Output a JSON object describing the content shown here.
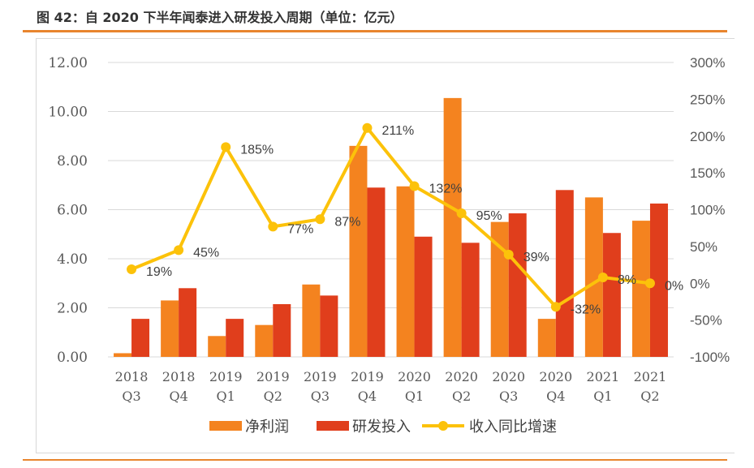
{
  "title": "图 42：自 2020 下半年闻泰进入研发投入周期（单位：亿元）",
  "chart_data": {
    "type": "bar+line",
    "categories": [
      [
        "2018",
        "Q3"
      ],
      [
        "2018",
        "Q4"
      ],
      [
        "2019",
        "Q1"
      ],
      [
        "2019",
        "Q2"
      ],
      [
        "2019",
        "Q3"
      ],
      [
        "2019",
        "Q4"
      ],
      [
        "2020",
        "Q1"
      ],
      [
        "2020",
        "Q2"
      ],
      [
        "2020",
        "Q3"
      ],
      [
        "2020",
        "Q4"
      ],
      [
        "2021",
        "Q1"
      ],
      [
        "2021",
        "Q2"
      ]
    ],
    "series": [
      {
        "name": "净利润",
        "type": "bar",
        "axis": "left",
        "color": "#f4831f",
        "values": [
          0.15,
          2.3,
          0.85,
          1.3,
          2.95,
          8.6,
          6.95,
          10.55,
          5.5,
          1.55,
          6.5,
          5.55
        ]
      },
      {
        "name": "研发投入",
        "type": "bar",
        "axis": "left",
        "color": "#e03e1c",
        "values": [
          1.55,
          2.8,
          1.55,
          2.15,
          2.5,
          6.9,
          4.9,
          4.65,
          5.85,
          6.8,
          5.05,
          6.25
        ]
      },
      {
        "name": "收入同比增速",
        "type": "line",
        "axis": "right",
        "color": "#fcc20a",
        "values": [
          19,
          45,
          185,
          77,
          87,
          211,
          132,
          95,
          39,
          -32,
          8,
          0
        ],
        "labels": [
          "19%",
          "45%",
          "185%",
          "77%",
          "87%",
          "211%",
          "132%",
          "95%",
          "39%",
          "-32%",
          "8%",
          "0%"
        ]
      }
    ],
    "left_axis": {
      "ylim": [
        0,
        12
      ],
      "ticks": [
        "0.00",
        "2.00",
        "4.00",
        "6.00",
        "8.00",
        "10.00",
        "12.00"
      ]
    },
    "right_axis": {
      "ylim": [
        -100,
        300
      ],
      "ticks": [
        "-100%",
        "-50%",
        "0%",
        "50%",
        "100%",
        "150%",
        "200%",
        "250%",
        "300%"
      ]
    },
    "grid": true,
    "legend": "bottom"
  }
}
